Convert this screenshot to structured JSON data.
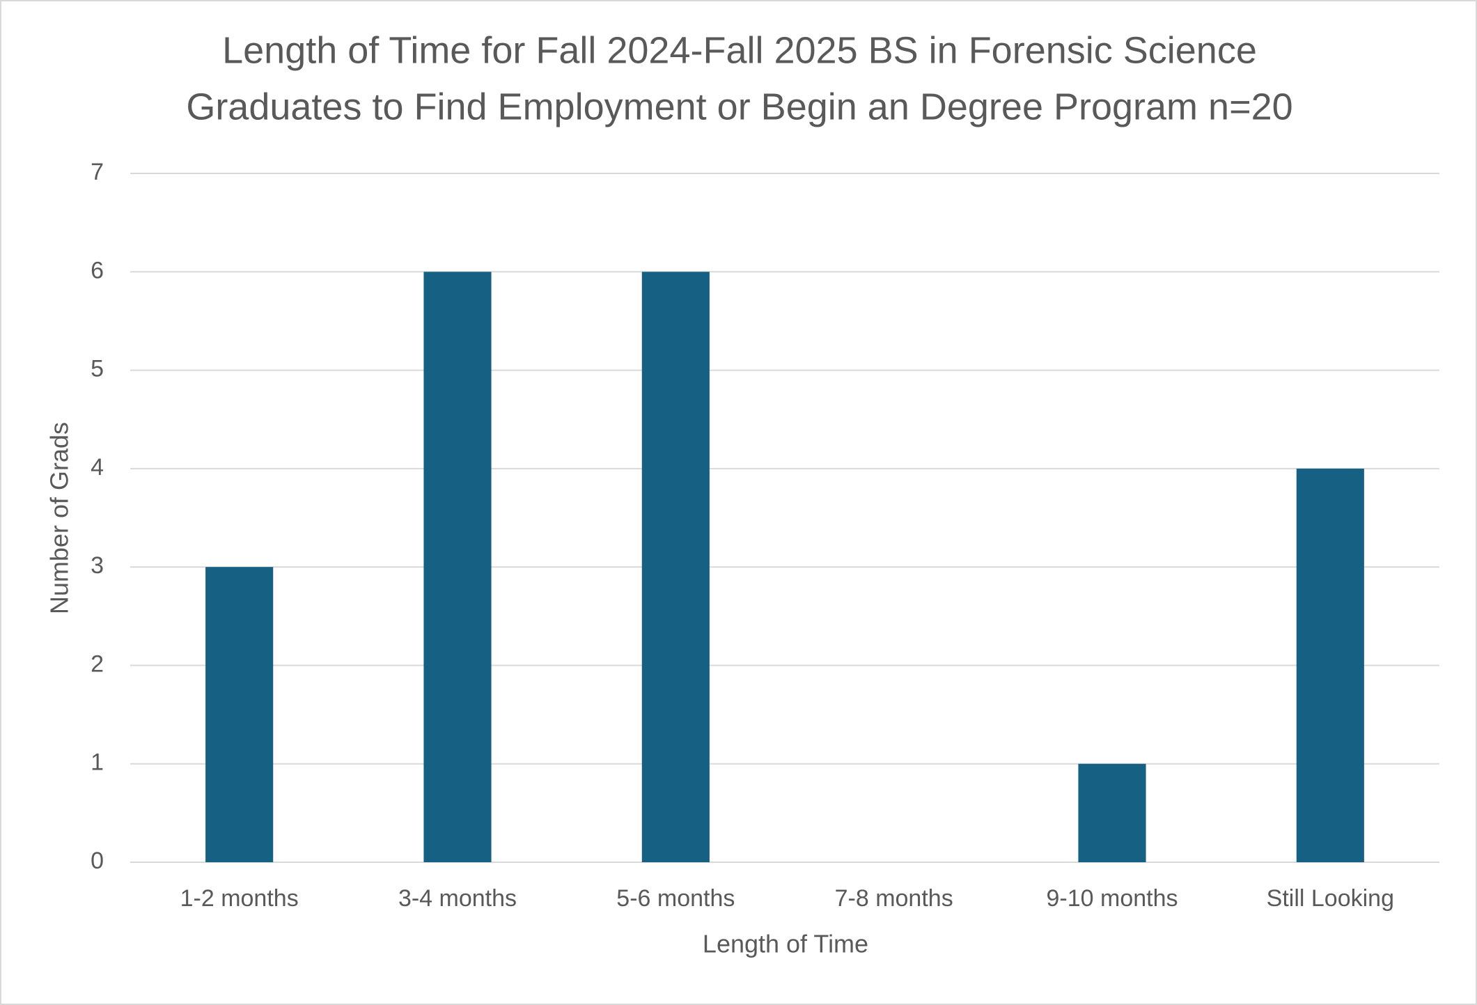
{
  "chart_data": {
    "type": "bar",
    "title": [
      "Length of Time for Fall 2024-Fall 2025 BS in Forensic Science",
      "Graduates to Find Employment or Begin an Degree Program n=20"
    ],
    "x_label": "Length of Time",
    "y_label": "Number of Grads",
    "categories": [
      "1-2 months",
      "3-4 months",
      "5-6 months",
      "7-8 months",
      "9-10 months",
      "Still Looking"
    ],
    "values": [
      3,
      6,
      6,
      0,
      1,
      4
    ],
    "color": "#166083",
    "ylim": [
      0,
      7
    ],
    "yticks": [
      0,
      1,
      2,
      3,
      4,
      5,
      6,
      7
    ],
    "grid": true
  }
}
